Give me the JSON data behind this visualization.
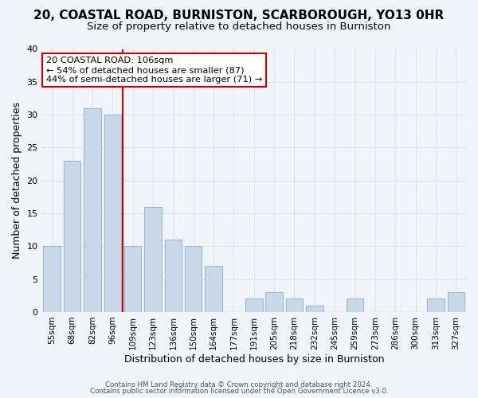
{
  "title": "20, COASTAL ROAD, BURNISTON, SCARBOROUGH, YO13 0HR",
  "subtitle": "Size of property relative to detached houses in Burniston",
  "xlabel": "Distribution of detached houses by size in Burniston",
  "ylabel": "Number of detached properties",
  "bar_labels": [
    "55sqm",
    "68sqm",
    "82sqm",
    "96sqm",
    "109sqm",
    "123sqm",
    "136sqm",
    "150sqm",
    "164sqm",
    "177sqm",
    "191sqm",
    "205sqm",
    "218sqm",
    "232sqm",
    "245sqm",
    "259sqm",
    "273sqm",
    "286sqm",
    "300sqm",
    "313sqm",
    "327sqm"
  ],
  "bar_values": [
    10,
    23,
    31,
    30,
    10,
    16,
    11,
    10,
    7,
    0,
    2,
    3,
    2,
    1,
    0,
    2,
    0,
    0,
    0,
    2,
    3
  ],
  "bar_color": "#c8d8e8",
  "bar_edge_color": "#a0b8cc",
  "reference_line_x": 3.5,
  "reference_line_color": "#cc0000",
  "annotation_line1": "20 COASTAL ROAD: 106sqm",
  "annotation_line2": "← 54% of detached houses are smaller (87)",
  "annotation_line3": "44% of semi-detached houses are larger (71) →",
  "annotation_box_color": "#ffffff",
  "annotation_box_edge_color": "#cc0000",
  "ylim": [
    0,
    40
  ],
  "yticks": [
    0,
    5,
    10,
    15,
    20,
    25,
    30,
    35,
    40
  ],
  "footer_line1": "Contains HM Land Registry data © Crown copyright and database right 2024.",
  "footer_line2": "Contains public sector information licensed under the Open Government Licence v3.0.",
  "background_color": "#f0f4f8",
  "grid_color": "#d8e4f0",
  "title_fontsize": 11,
  "subtitle_fontsize": 9.5,
  "xlabel_fontsize": 9,
  "ylabel_fontsize": 9
}
